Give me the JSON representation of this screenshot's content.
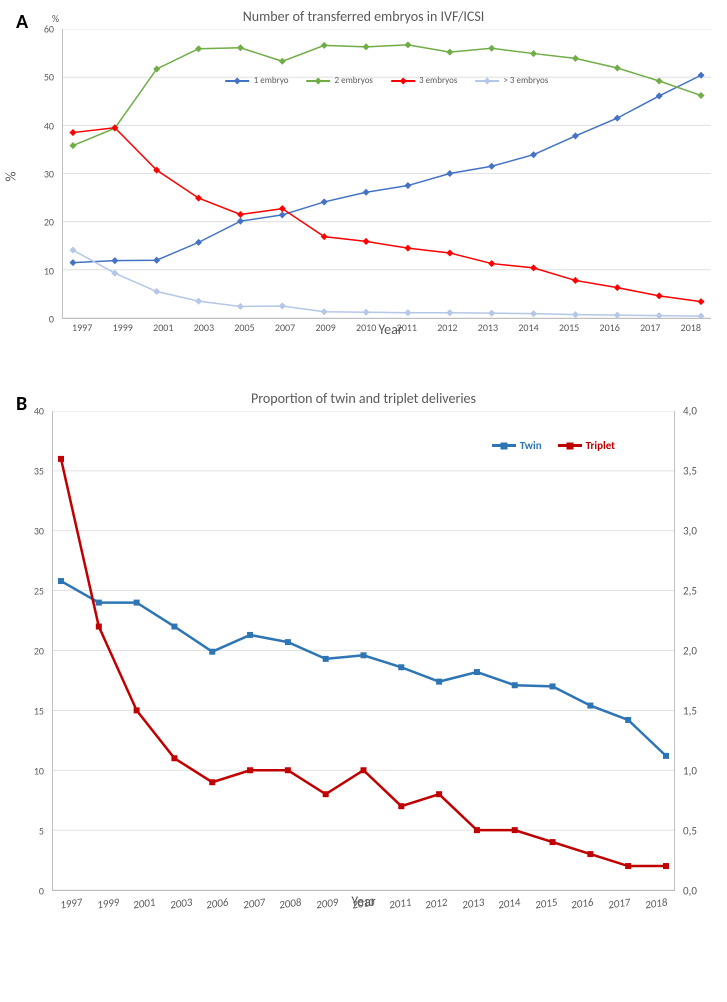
{
  "chartA": {
    "type": "line",
    "panel_label": "A",
    "title": "Number of transferred embryos in IVF/ICSI",
    "xlabel": "Year",
    "ylabel": "%",
    "y_unit_label": "%",
    "title_fontsize": 14,
    "label_fontsize": 14,
    "tick_fontsize": 10,
    "background_color": "#ffffff",
    "grid_color": "#d9d9d9",
    "axis_color": "#bfbfbf",
    "text_color": "#595959",
    "xlim": [
      1997,
      2018
    ],
    "ylim": [
      0,
      60
    ],
    "ytick_step": 10,
    "years": [
      1997,
      1999,
      2001,
      2003,
      2005,
      2007,
      2009,
      2010,
      2011,
      2012,
      2013,
      2014,
      2015,
      2016,
      2017,
      2018
    ],
    "series": [
      {
        "label": "1 embryo",
        "color": "#4472c4",
        "marker": "diamond",
        "line_width": 1.5,
        "values": [
          11.5,
          11.9,
          12.0,
          15.7,
          20.1,
          21.4,
          24.1,
          26.1,
          27.5,
          30.0,
          31.5,
          33.9,
          37.8,
          41.5,
          46.1,
          50.4
        ]
      },
      {
        "label": "2 embryos",
        "color": "#70ad47",
        "marker": "diamond",
        "line_width": 1.5,
        "values": [
          35.8,
          39.4,
          51.7,
          55.9,
          56.1,
          53.3,
          56.6,
          56.3,
          56.7,
          55.2,
          56.0,
          54.9,
          53.9,
          51.9,
          49.2,
          46.2
        ]
      },
      {
        "label": "3 embryos",
        "color": "#ff0000",
        "marker": "diamond",
        "line_width": 1.5,
        "values": [
          38.5,
          39.5,
          30.7,
          24.9,
          21.5,
          22.7,
          16.9,
          15.9,
          14.5,
          13.5,
          11.3,
          10.4,
          7.8,
          6.3,
          4.6,
          3.4
        ]
      },
      {
        "label": "> 3 embryos",
        "color": "#b4c7e7",
        "marker": "diamond",
        "line_width": 1.5,
        "values": [
          14.1,
          9.3,
          5.5,
          3.5,
          2.4,
          2.5,
          1.3,
          1.2,
          1.1,
          1.1,
          1.0,
          0.9,
          0.7,
          0.6,
          0.5,
          0.4
        ]
      }
    ]
  },
  "chartB": {
    "type": "line",
    "panel_label": "B",
    "title": "Proportion of twin and triplet deliveries",
    "xlabel": "Year",
    "title_fontsize": 14,
    "label_fontsize": 14,
    "tick_fontsize": 11,
    "background_color": "#ffffff",
    "grid_color": "#d9d9d9",
    "axis_color": "#bfbfbf",
    "text_color": "#595959",
    "ylim_left": [
      0,
      40
    ],
    "ytick_step_left": 5,
    "ylim_right": [
      0.0,
      4.0
    ],
    "ytick_step_right": 0.5,
    "decimal_separator": ",",
    "years": [
      1997,
      1999,
      2001,
      2003,
      2006,
      2007,
      2008,
      2009,
      2010,
      2011,
      2012,
      2013,
      2014,
      2015,
      2016,
      2017,
      2018
    ],
    "series": [
      {
        "label": "Twin",
        "color": "#2e75b6",
        "marker": "square",
        "line_width": 2.5,
        "axis": "left",
        "values": [
          25.8,
          24.0,
          24.0,
          22.0,
          19.9,
          21.3,
          20.7,
          19.3,
          19.6,
          18.6,
          17.4,
          18.2,
          17.1,
          17.0,
          15.4,
          14.2,
          11.2
        ]
      },
      {
        "label": "Triplet",
        "color": "#c00000",
        "marker": "square",
        "line_width": 2.5,
        "axis": "right",
        "values": [
          3.6,
          2.2,
          1.5,
          1.1,
          0.9,
          1.0,
          1.0,
          0.8,
          1.0,
          0.7,
          0.8,
          0.5,
          0.5,
          0.4,
          0.3,
          0.2,
          0.2
        ]
      }
    ]
  }
}
